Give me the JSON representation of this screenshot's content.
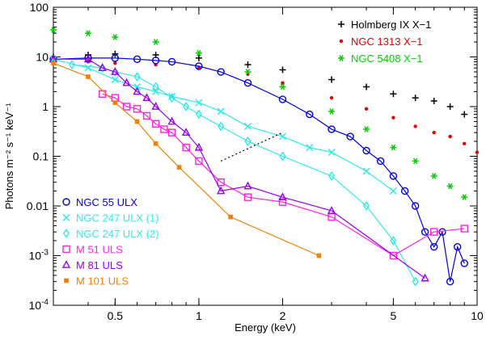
{
  "chart_data": {
    "type": "scatter",
    "xlabel": "Energy (keV)",
    "ylabel": "Photons m⁻² s⁻¹ keV⁻¹",
    "xscale": "log",
    "yscale": "log",
    "xlim": [
      0.3,
      10
    ],
    "ylim": [
      0.0001,
      100
    ],
    "grid": false,
    "x_ticks": [
      {
        "value": 0.5,
        "label": "0.5"
      },
      {
        "value": 1,
        "label": "1"
      },
      {
        "value": 2,
        "label": "2"
      },
      {
        "value": 5,
        "label": "5"
      },
      {
        "value": 10,
        "label": "10"
      }
    ],
    "y_ticks": [
      {
        "value": 100,
        "label": "100"
      },
      {
        "value": 10,
        "label": "10"
      },
      {
        "value": 1,
        "label": "1"
      },
      {
        "value": 0.1,
        "label": "0.1"
      },
      {
        "value": 0.01,
        "label": "0.01"
      },
      {
        "value": 0.001,
        "label": "10",
        "exp": "-3"
      },
      {
        "value": 0.0001,
        "label": "10",
        "exp": "-4"
      }
    ],
    "legends": [
      {
        "placement": "top-right",
        "entries": [
          0,
          1,
          2
        ]
      },
      {
        "placement": "bottom-left",
        "entries": [
          3,
          4,
          5,
          6,
          7,
          8
        ]
      }
    ],
    "series": [
      {
        "name": "Holmberg IX X−1",
        "color": "#000000",
        "marker": "plus",
        "x": [
          0.3,
          0.4,
          0.5,
          0.7,
          1.0,
          1.5,
          2.0,
          3.0,
          4.0,
          5.0,
          6.0,
          7.0,
          8.0,
          9.0
        ],
        "y": [
          10,
          11,
          11.5,
          11,
          9.5,
          7,
          5.5,
          3.5,
          2.5,
          1.8,
          1.5,
          1.3,
          1.0,
          0.7
        ]
      },
      {
        "name": "NGC 1313 X−1",
        "color": "#e00000",
        "marker": "dot",
        "x": [
          0.3,
          0.4,
          0.5,
          0.7,
          1.0,
          1.5,
          2.0,
          3.0,
          4.0,
          5.0,
          6.0,
          7.0,
          8.0,
          9.0,
          10.0
        ],
        "y": [
          8,
          8,
          7.5,
          7,
          6,
          4.5,
          3,
          1.5,
          0.9,
          0.6,
          0.4,
          0.3,
          0.25,
          0.18,
          0.12
        ]
      },
      {
        "name": "NGC 5408 X−1",
        "color": "#00d000",
        "marker": "star",
        "x": [
          0.3,
          0.4,
          0.5,
          0.7,
          1.0,
          1.5,
          2.0,
          3.0,
          4.0,
          5.0,
          6.0,
          7.0,
          8.0,
          9.0
        ],
        "y": [
          35,
          30,
          25,
          20,
          12,
          5,
          2.5,
          0.8,
          0.35,
          0.15,
          0.08,
          0.04,
          0.025,
          0.015
        ]
      },
      {
        "name": "NGC  55 ULX",
        "color": "#0000e0",
        "marker": "circle",
        "line": true,
        "x": [
          0.3,
          0.4,
          0.5,
          0.6,
          0.7,
          0.8,
          1.0,
          1.2,
          1.5,
          2.0,
          2.5,
          3.0,
          3.5,
          4.0,
          4.5,
          5.0,
          5.5,
          6.0,
          6.5,
          7.0,
          7.5,
          8.0,
          8.5,
          9.0
        ],
        "y": [
          9,
          9.5,
          9.5,
          9,
          8.5,
          8,
          6.5,
          5,
          3,
          1.4,
          0.7,
          0.35,
          0.25,
          0.13,
          0.08,
          0.04,
          0.02,
          0.01,
          0.003,
          0.0015,
          0.003,
          0.0003,
          0.0015,
          0.0007
        ]
      },
      {
        "name": "NGC 247 ULX (1)",
        "color": "#33e8e8",
        "marker": "x",
        "line": true,
        "x": [
          0.3,
          0.4,
          0.5,
          0.6,
          0.7,
          0.8,
          1.0,
          1.2,
          1.5,
          2.0,
          2.5,
          3.0,
          4.0,
          5.0
        ],
        "y": [
          9,
          6,
          3.5,
          2.5,
          2.0,
          1.6,
          1.2,
          0.8,
          0.4,
          0.25,
          0.15,
          0.12,
          0.05,
          0.02
        ]
      },
      {
        "name": "NGC 247 ULX (2)",
        "color": "#33e8e8",
        "marker": "diamond",
        "line": true,
        "x": [
          0.35,
          0.45,
          0.5,
          0.6,
          0.7,
          0.8,
          0.9,
          1.0,
          1.2,
          1.5,
          2.0,
          3.0,
          4.0,
          5.0,
          6.0
        ],
        "y": [
          7,
          6,
          5,
          4,
          2.5,
          1.5,
          1.0,
          0.7,
          0.4,
          0.2,
          0.1,
          0.04,
          0.01,
          0.002,
          0.0003
        ]
      },
      {
        "name": "M  51 ULS",
        "color": "#ff22dd",
        "marker": "square",
        "line": true,
        "x": [
          0.45,
          0.5,
          0.55,
          0.6,
          0.65,
          0.7,
          0.75,
          0.8,
          0.9,
          1.0,
          1.2,
          1.5,
          2.0,
          3.0,
          5.0,
          7.0,
          9.0
        ],
        "y": [
          1.8,
          1.5,
          1.0,
          0.9,
          0.65,
          0.45,
          0.35,
          0.3,
          0.15,
          0.08,
          0.03,
          0.015,
          0.012,
          0.006,
          0.001,
          0.003,
          0.0035
        ]
      },
      {
        "name": "M  81 ULS",
        "color": "#9900ee",
        "marker": "triangle",
        "line": true,
        "x": [
          0.3,
          0.4,
          0.45,
          0.5,
          0.55,
          0.6,
          0.65,
          0.7,
          0.8,
          0.9,
          1.0,
          1.2,
          1.5,
          2.0,
          3.0,
          6.5
        ],
        "y": [
          9,
          9,
          6,
          5,
          3,
          2,
          1.5,
          1.0,
          0.5,
          0.3,
          0.15,
          0.02,
          0.025,
          0.015,
          0.008,
          0.00035
        ]
      },
      {
        "name": "M 101 ULS",
        "color": "#f08000",
        "marker": "filled-square",
        "line": true,
        "x": [
          0.3,
          0.4,
          0.5,
          0.6,
          0.7,
          0.85,
          1.3,
          2.7
        ],
        "y": [
          7.5,
          4,
          1.2,
          0.5,
          0.18,
          0.06,
          0.006,
          0.001
        ]
      }
    ],
    "annotations": [
      {
        "type": "dotted-line",
        "color": "#000000",
        "x": [
          1.2,
          2.0
        ],
        "y": [
          0.08,
          0.3
        ]
      }
    ]
  }
}
